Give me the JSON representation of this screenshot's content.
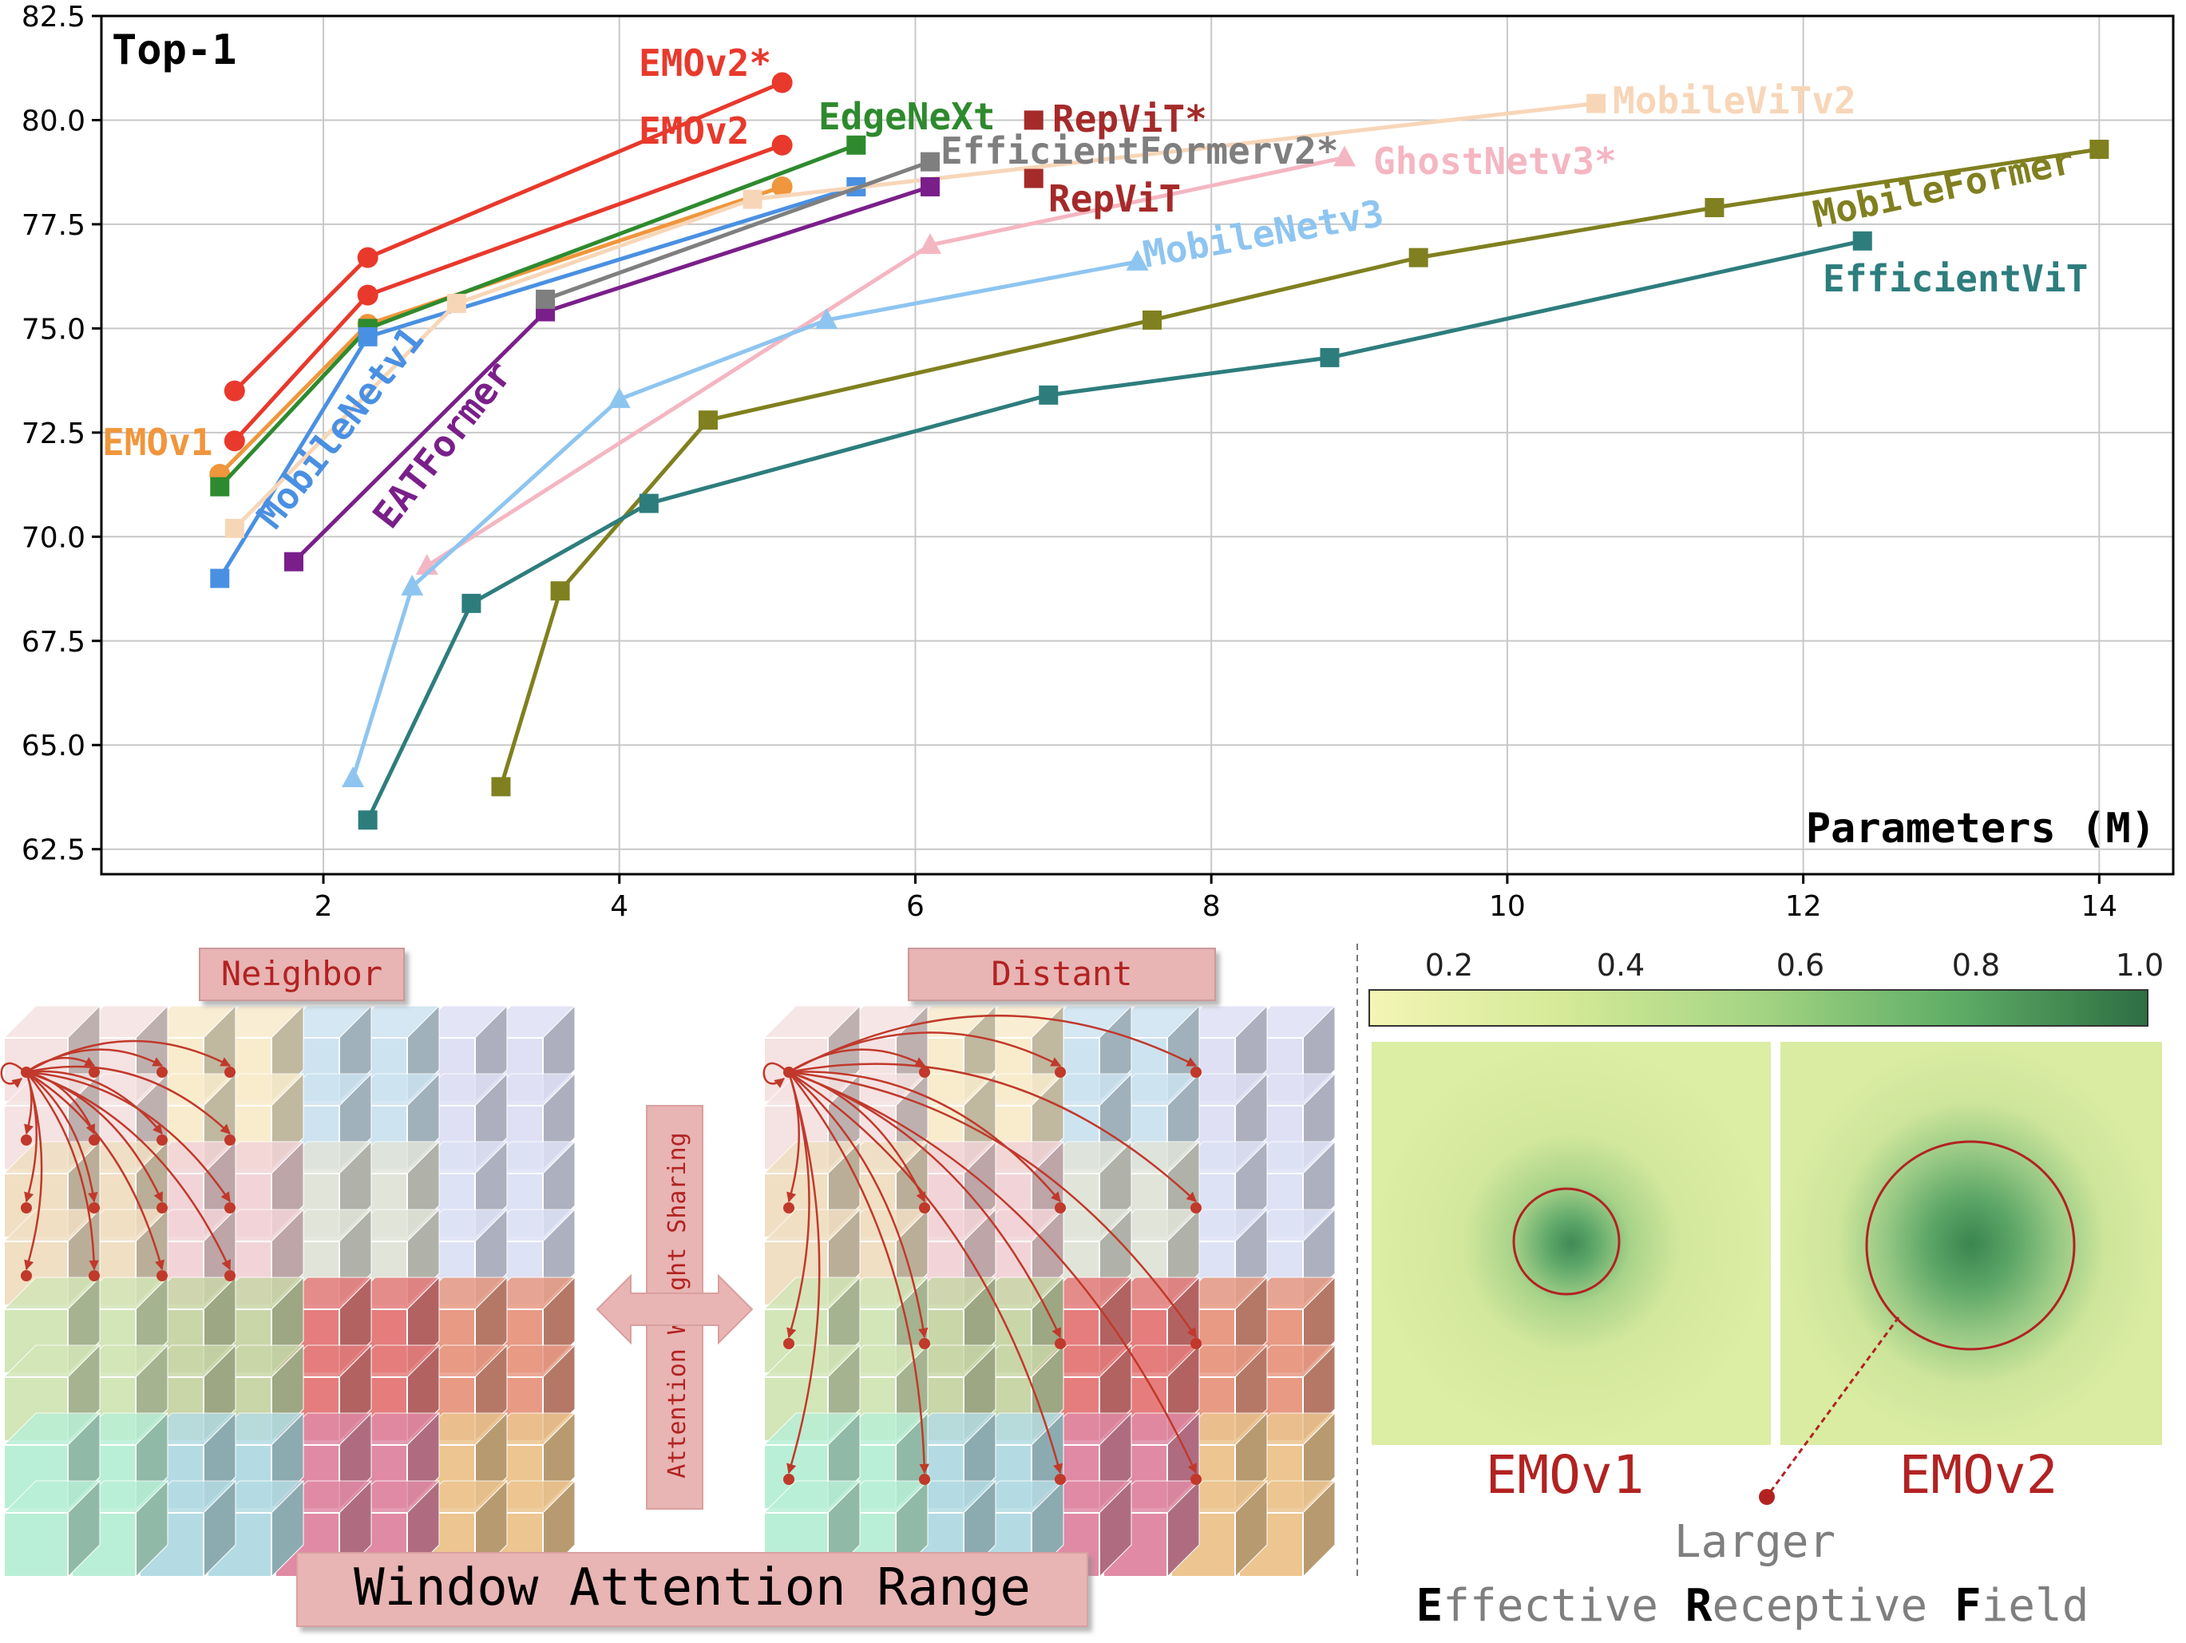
{
  "chart_data": {
    "type": "line",
    "ylabel": "Top-1",
    "xlabel": "Parameters (M)",
    "xlim": [
      0.5,
      14.5
    ],
    "ylim": [
      61.9,
      82.5
    ],
    "x_ticks": [
      2,
      4,
      6,
      8,
      10,
      12,
      14
    ],
    "y_ticks": [
      62.5,
      65.0,
      67.5,
      70.0,
      72.5,
      75.0,
      77.5,
      80.0,
      82.5
    ],
    "grid": true,
    "series": [
      {
        "name": "EMOv2*",
        "color": "#e8392c",
        "marker": "circle",
        "x": [
          1.4,
          2.3,
          5.1
        ],
        "y": [
          73.5,
          76.7,
          80.9
        ]
      },
      {
        "name": "EMOv2",
        "color": "#e8392c",
        "marker": "circle",
        "x": [
          1.4,
          2.3,
          5.1
        ],
        "y": [
          72.3,
          75.8,
          79.4
        ]
      },
      {
        "name": "EMOv1",
        "color": "#f0963c",
        "marker": "circle",
        "x": [
          1.3,
          2.3,
          5.1
        ],
        "y": [
          71.5,
          75.1,
          78.4
        ]
      },
      {
        "name": "EdgeNeXt",
        "color": "#2e8a2e",
        "marker": "square",
        "x": [
          1.3,
          2.3,
          5.6
        ],
        "y": [
          71.2,
          75.0,
          79.4
        ]
      },
      {
        "name": "MobileNetv1",
        "color": "#4a90e2",
        "marker": "square",
        "x": [
          1.3,
          2.3,
          5.6
        ],
        "y": [
          69.0,
          74.8,
          78.4
        ]
      },
      {
        "name": "MobileViTv2",
        "color": "#f7d6b8",
        "marker": "square",
        "x": [
          1.4,
          2.9,
          4.9,
          10.6
        ],
        "y": [
          70.2,
          75.6,
          78.1,
          80.4
        ]
      },
      {
        "name": "EATFormer",
        "color": "#7a1f8a",
        "marker": "square",
        "x": [
          1.8,
          3.5,
          6.1
        ],
        "y": [
          69.4,
          75.4,
          78.4
        ]
      },
      {
        "name": "EfficientFormerv2*",
        "color": "#7f7f7f",
        "marker": "square",
        "x": [
          3.5,
          6.1
        ],
        "y": [
          75.7,
          79.0
        ]
      },
      {
        "name": "RepViT*",
        "color": "#a52a2a",
        "marker": "square",
        "x": [
          6.8
        ],
        "y": [
          80.0
        ]
      },
      {
        "name": "RepViT",
        "color": "#a52a2a",
        "marker": "square",
        "x": [
          6.8
        ],
        "y": [
          78.6
        ]
      },
      {
        "name": "GhostNetv3*",
        "color": "#f4b6c2",
        "marker": "triangle",
        "x": [
          2.7,
          6.1,
          8.9
        ],
        "y": [
          69.3,
          77.0,
          79.1
        ]
      },
      {
        "name": "MobileNetv3",
        "color": "#8ec5f0",
        "marker": "triangle",
        "x": [
          2.2,
          2.6,
          4.0,
          5.4,
          7.5
        ],
        "y": [
          64.2,
          68.8,
          73.3,
          75.2,
          76.6
        ]
      },
      {
        "name": "MobileFormer",
        "color": "#808020",
        "marker": "square",
        "x": [
          3.2,
          3.6,
          4.6,
          7.6,
          9.4,
          11.4,
          14.0
        ],
        "y": [
          64.0,
          68.7,
          72.8,
          75.2,
          76.7,
          77.9,
          79.3
        ]
      },
      {
        "name": "EfficientViT",
        "color": "#2e7d7d",
        "marker": "square",
        "x": [
          2.3,
          3.0,
          4.2,
          6.9,
          8.8,
          12.4
        ],
        "y": [
          63.2,
          68.4,
          70.8,
          73.4,
          74.3,
          77.1
        ]
      }
    ]
  },
  "diagram": {
    "neighbor_label": "Neighbor",
    "distant_label": "Distant",
    "sharing_label": "Attention Weight Sharing",
    "window_label": "Window Attention Range",
    "colorbar_ticks": [
      "0.2",
      "0.4",
      "0.6",
      "0.8",
      "1.0"
    ],
    "erf_left_label": "EMOv1",
    "erf_right_label": "EMOv2",
    "larger_label": "Larger",
    "erf_caption": {
      "E": "E",
      "e_rest": "ffective ",
      "R": "R",
      "r_rest": "eceptive ",
      "F": "F",
      "f_rest": "ield"
    }
  },
  "colors": {
    "accent": "#b22222",
    "grid": "#c8c8c8"
  }
}
